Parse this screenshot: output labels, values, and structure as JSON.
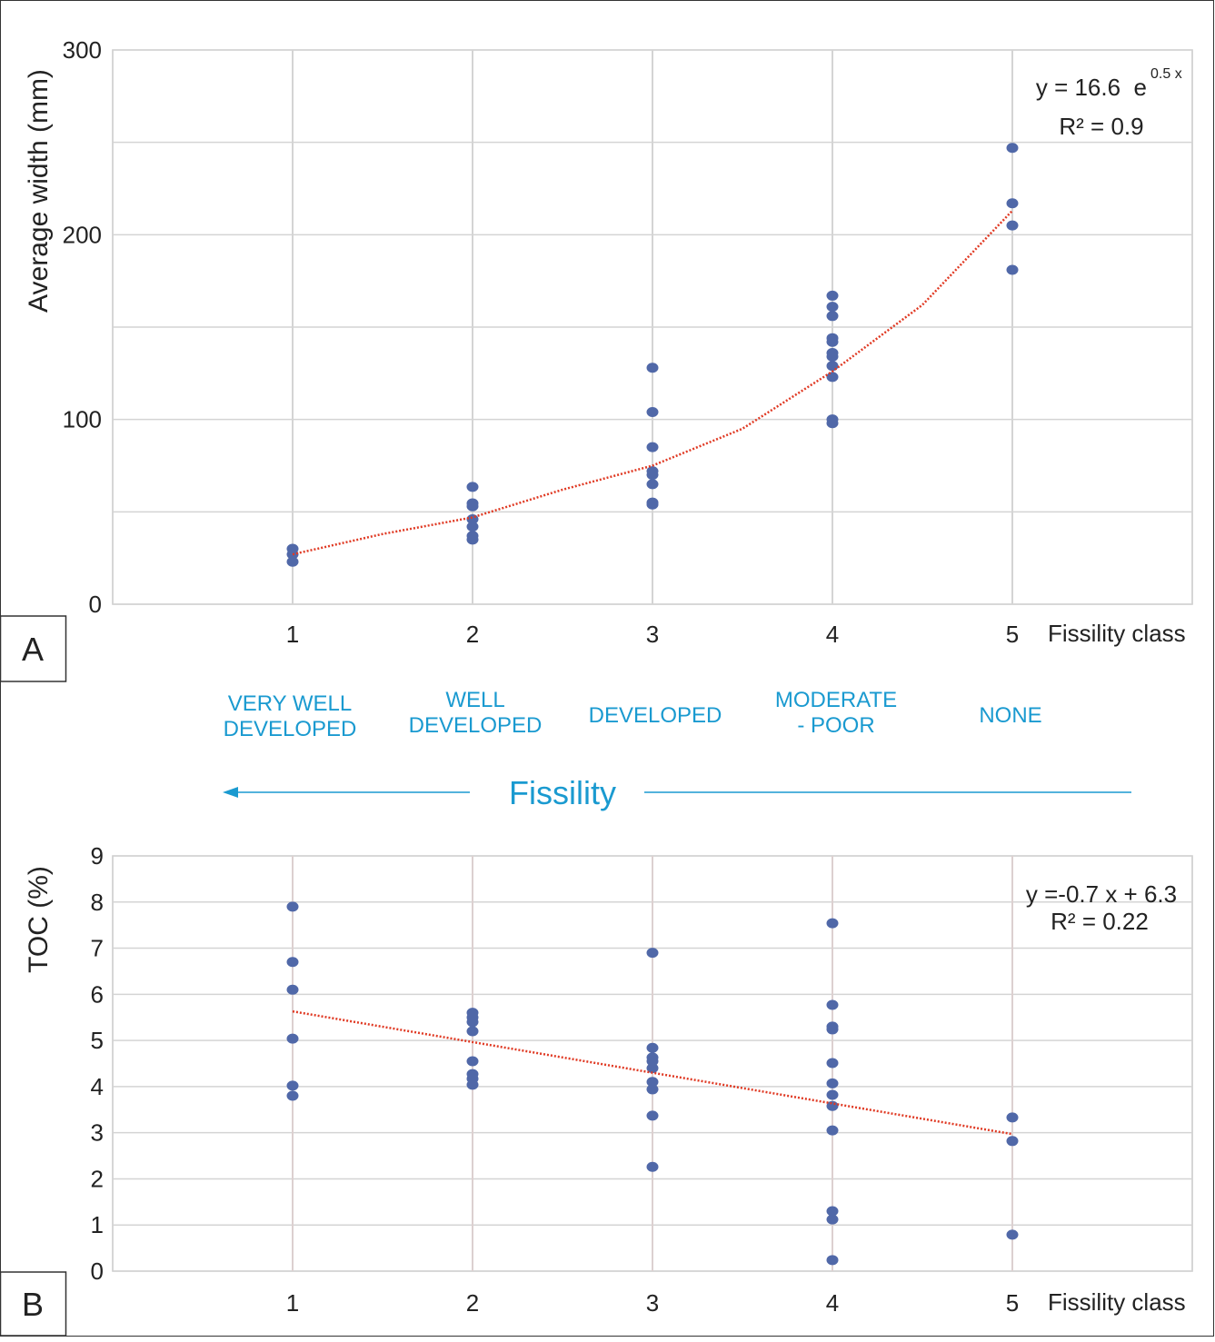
{
  "chart_data": [
    {
      "type": "scatter",
      "panel": "A",
      "ylabel": "Average width (mm)",
      "xlabel": "Fissility class",
      "xlim": [
        0,
        6
      ],
      "xticks": [
        1,
        2,
        3,
        4,
        5
      ],
      "ylim": [
        0,
        300
      ],
      "yticks": [
        0,
        100,
        200,
        300
      ],
      "grid": true,
      "series": [
        {
          "color": "#5068a8",
          "x": [
            1,
            1,
            1,
            2,
            2,
            2,
            2,
            2,
            2,
            2,
            3,
            3,
            3,
            3,
            3,
            3,
            3,
            3,
            4,
            4,
            4,
            4,
            4,
            4,
            4,
            4,
            4,
            4,
            4,
            5,
            5,
            5,
            5
          ],
          "values": [
            30,
            27,
            23,
            63.5,
            54.6,
            53,
            46,
            42,
            37,
            35,
            128,
            104,
            85,
            72,
            70,
            65,
            55,
            54,
            167,
            161,
            156,
            144,
            142,
            136,
            134,
            129,
            123,
            100,
            98,
            247,
            217,
            205,
            181
          ]
        }
      ],
      "trendline": {
        "color": "#e03a24",
        "x": [
          1,
          1.5,
          2,
          2.5,
          3,
          3.5,
          4,
          4.5,
          5
        ],
        "values": [
          27,
          38,
          47,
          62,
          75,
          95,
          126,
          162,
          213
        ]
      },
      "equation": "y = 16.6  e",
      "equation_exponent": "0.5 x",
      "r2": "R² = 0.9"
    },
    {
      "type": "scatter",
      "panel": "B",
      "ylabel": "TOC (%)",
      "xlabel": "Fissility class",
      "xlim": [
        0,
        6
      ],
      "xticks": [
        1,
        2,
        3,
        4,
        5
      ],
      "ylim": [
        0,
        9
      ],
      "yticks": [
        0,
        1,
        2,
        3,
        4,
        5,
        6,
        7,
        8,
        9
      ],
      "grid": true,
      "series": [
        {
          "color": "#5068a8",
          "x": [
            1,
            1,
            1,
            1,
            1,
            1,
            2,
            2,
            2,
            2,
            2,
            2,
            2,
            2,
            3,
            3,
            3,
            3,
            3,
            3,
            3,
            3,
            3,
            4,
            4,
            4,
            4,
            4,
            4,
            4,
            4,
            4,
            4,
            4,
            4,
            5,
            5,
            5
          ],
          "values": [
            7.9,
            6.7,
            6.1,
            5.04,
            4.02,
            3.8,
            5.6,
            5.5,
            5.4,
            5.2,
            4.55,
            4.27,
            4.17,
            4.04,
            6.9,
            4.84,
            4.63,
            4.55,
            4.4,
            4.1,
            3.94,
            3.37,
            2.26,
            7.54,
            5.77,
            5.3,
            5.24,
            4.51,
            4.07,
            3.82,
            3.58,
            3.05,
            1.3,
            1.12,
            0.24,
            3.33,
            2.82,
            0.79
          ]
        }
      ],
      "trendline": {
        "color": "#e03a24",
        "x": [
          1,
          5
        ],
        "values": [
          5.63,
          2.97
        ]
      },
      "equation": "y =-0.7 x + 6.3",
      "r2": "R² = 0.22"
    }
  ],
  "fissility_scale": {
    "title": "Fissility",
    "labels": [
      [
        "VERY WELL",
        "DEVELOPED"
      ],
      [
        "WELL",
        "DEVELOPED"
      ],
      [
        "DEVELOPED"
      ],
      [
        "MODERATE",
        "- POOR"
      ],
      [
        "NONE"
      ]
    ]
  }
}
